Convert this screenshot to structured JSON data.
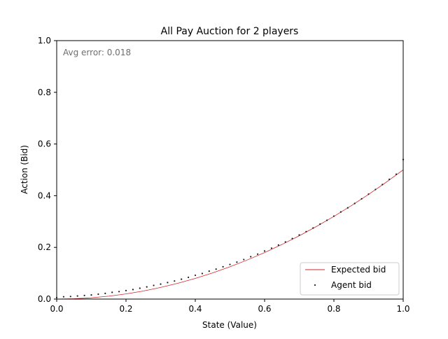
{
  "chart_data": {
    "type": "scatter",
    "title": "All Pay Auction for 2 players",
    "xlabel": "State (Value)",
    "ylabel": "Action (Bid)",
    "xlim": [
      0.0,
      1.0
    ],
    "ylim": [
      0.0,
      1.0
    ],
    "xticks": [
      "0.0",
      "0.2",
      "0.4",
      "0.6",
      "0.8",
      "1.0"
    ],
    "yticks": [
      "0.0",
      "0.2",
      "0.4",
      "0.6",
      "0.8",
      "1.0"
    ],
    "annotation": "Avg error: 0.018",
    "grid": false,
    "legend_position": "lower-right",
    "series": [
      {
        "name": "Expected bid",
        "kind": "line",
        "color": "#d62728",
        "formula": "x^2/2",
        "x": [
          0.0,
          0.05,
          0.1,
          0.15,
          0.2,
          0.25,
          0.3,
          0.35,
          0.4,
          0.45,
          0.5,
          0.55,
          0.6,
          0.65,
          0.7,
          0.75,
          0.8,
          0.85,
          0.9,
          0.95,
          1.0
        ],
        "y": [
          0.0,
          0.00125,
          0.005,
          0.01125,
          0.02,
          0.03125,
          0.045,
          0.06125,
          0.08,
          0.10125,
          0.125,
          0.15125,
          0.18,
          0.21125,
          0.245,
          0.28125,
          0.32,
          0.36125,
          0.405,
          0.45125,
          0.5
        ]
      },
      {
        "name": "Agent bid",
        "kind": "points",
        "color": "#1a1a1a",
        "x": [
          0.0,
          0.02,
          0.04,
          0.06,
          0.08,
          0.1,
          0.12,
          0.14,
          0.16,
          0.18,
          0.2,
          0.22,
          0.24,
          0.26,
          0.28,
          0.3,
          0.32,
          0.34,
          0.36,
          0.38,
          0.4,
          0.42,
          0.44,
          0.46,
          0.48,
          0.5,
          0.52,
          0.54,
          0.56,
          0.58,
          0.6,
          0.62,
          0.64,
          0.66,
          0.68,
          0.7,
          0.72,
          0.74,
          0.76,
          0.78,
          0.8,
          0.82,
          0.84,
          0.86,
          0.88,
          0.9,
          0.92,
          0.94,
          0.96,
          0.98,
          1.0
        ],
        "y": [
          0.006,
          0.009,
          0.01,
          0.012,
          0.014,
          0.016,
          0.019,
          0.022,
          0.026,
          0.029,
          0.033,
          0.037,
          0.042,
          0.047,
          0.053,
          0.058,
          0.064,
          0.07,
          0.077,
          0.084,
          0.092,
          0.099,
          0.108,
          0.116,
          0.125,
          0.134,
          0.143,
          0.153,
          0.164,
          0.174,
          0.186,
          0.197,
          0.209,
          0.221,
          0.234,
          0.248,
          0.261,
          0.275,
          0.29,
          0.305,
          0.321,
          0.337,
          0.353,
          0.37,
          0.388,
          0.406,
          0.424,
          0.443,
          0.463,
          0.483,
          0.54
        ]
      }
    ]
  }
}
